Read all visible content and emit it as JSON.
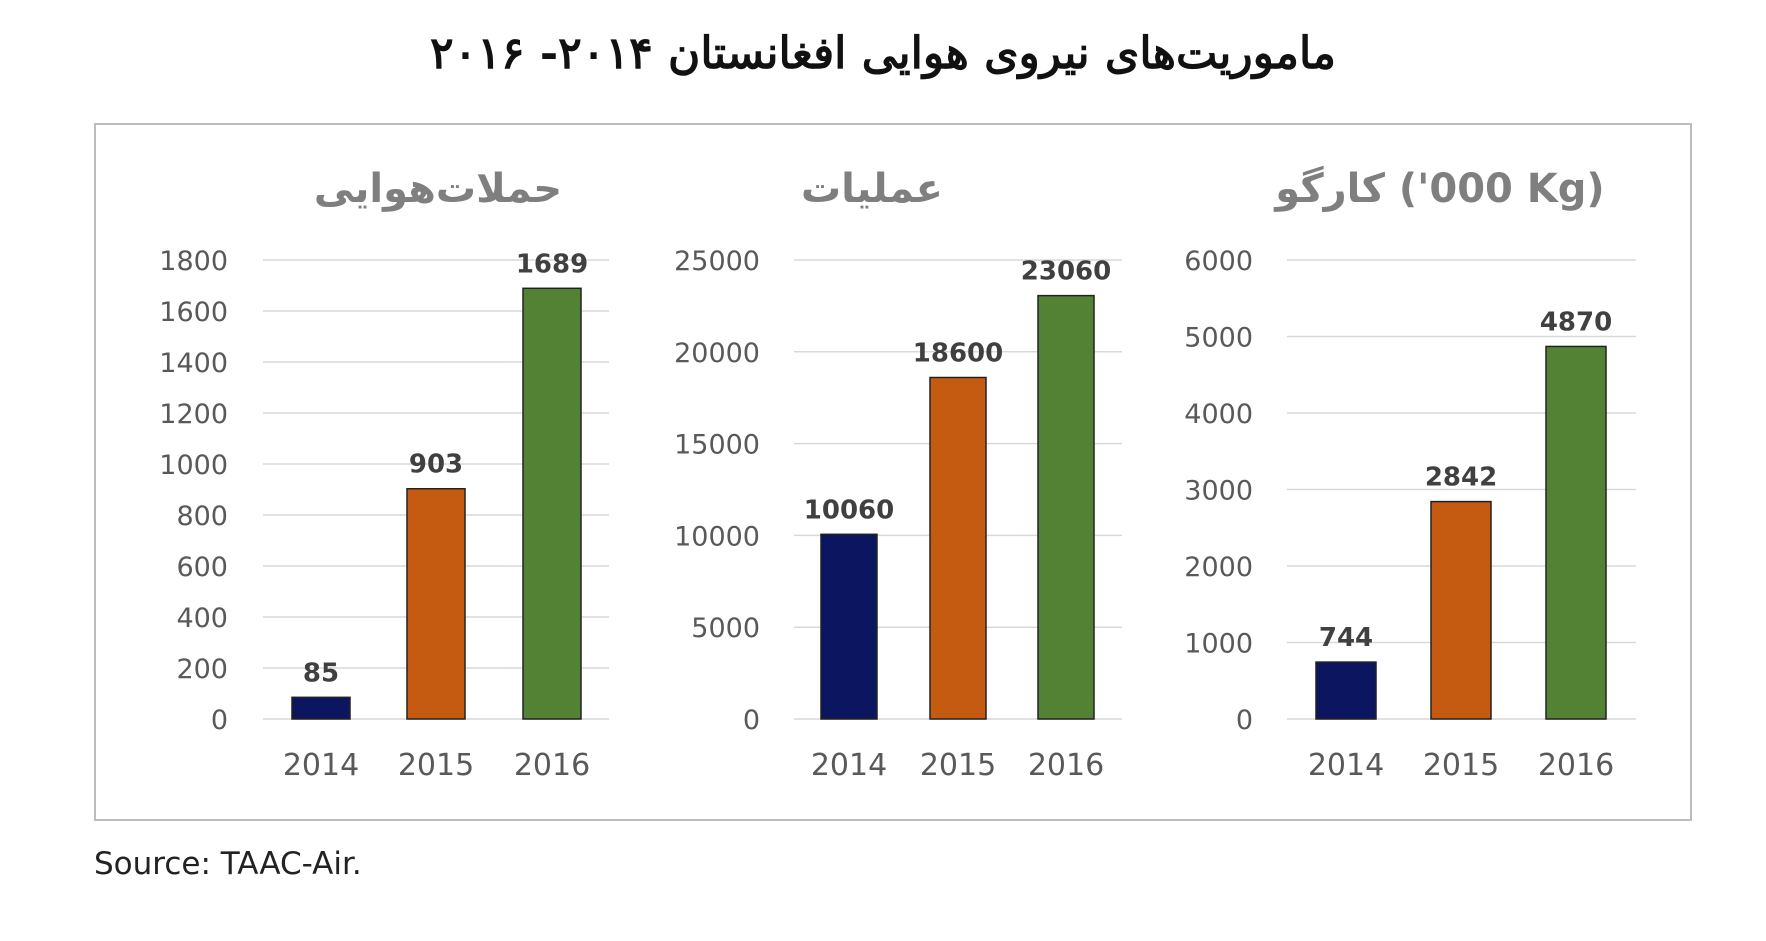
{
  "title": "ماموریت‌های نیروی هوایی افغانستان ۲۰۱۴- ۲۰۱۶",
  "source": "Source:  TAAC-Air.",
  "colors": {
    "bar_2014": "#0b1560",
    "bar_2015": "#c55a11",
    "bar_2016": "#548235"
  },
  "chart_data": [
    {
      "type": "bar",
      "title": "حملات‌هوایی",
      "categories": [
        "2014",
        "2015",
        "2016"
      ],
      "values": [
        85,
        903,
        1689
      ],
      "value_labels": [
        "85",
        "903",
        "1689"
      ],
      "ylim": [
        0,
        1800
      ],
      "yticks": [
        0,
        200,
        400,
        600,
        800,
        1000,
        1200,
        1400,
        1600,
        1800
      ],
      "ytick_labels": [
        "0",
        "200",
        "400",
        "600",
        "800",
        "1000",
        "1200",
        "1400",
        "1600",
        "1800"
      ],
      "grid": true,
      "xlabel": "",
      "ylabel": ""
    },
    {
      "type": "bar",
      "title": "عملیات",
      "categories": [
        "2014",
        "2015",
        "2016"
      ],
      "values": [
        10060,
        18600,
        23060
      ],
      "value_labels": [
        "10060",
        "18600",
        "23060"
      ],
      "ylim": [
        0,
        25000
      ],
      "yticks": [
        0,
        5000,
        10000,
        15000,
        20000,
        25000
      ],
      "ytick_labels": [
        "0",
        "5000",
        "10000",
        "15000",
        "20000",
        "25000"
      ],
      "grid": true,
      "xlabel": "",
      "ylabel": ""
    },
    {
      "type": "bar",
      "title": "کارگو      ('000 Kg)",
      "categories": [
        "2014",
        "2015",
        "2016"
      ],
      "values": [
        744,
        2842,
        4870
      ],
      "value_labels": [
        "744",
        "2842",
        "4870"
      ],
      "ylim": [
        0,
        6000
      ],
      "yticks": [
        0,
        1000,
        2000,
        3000,
        4000,
        5000,
        6000
      ],
      "ytick_labels": [
        "0",
        "1000",
        "2000",
        "3000",
        "4000",
        "5000",
        "6000"
      ],
      "grid": true,
      "xlabel": "",
      "ylabel": ""
    }
  ]
}
